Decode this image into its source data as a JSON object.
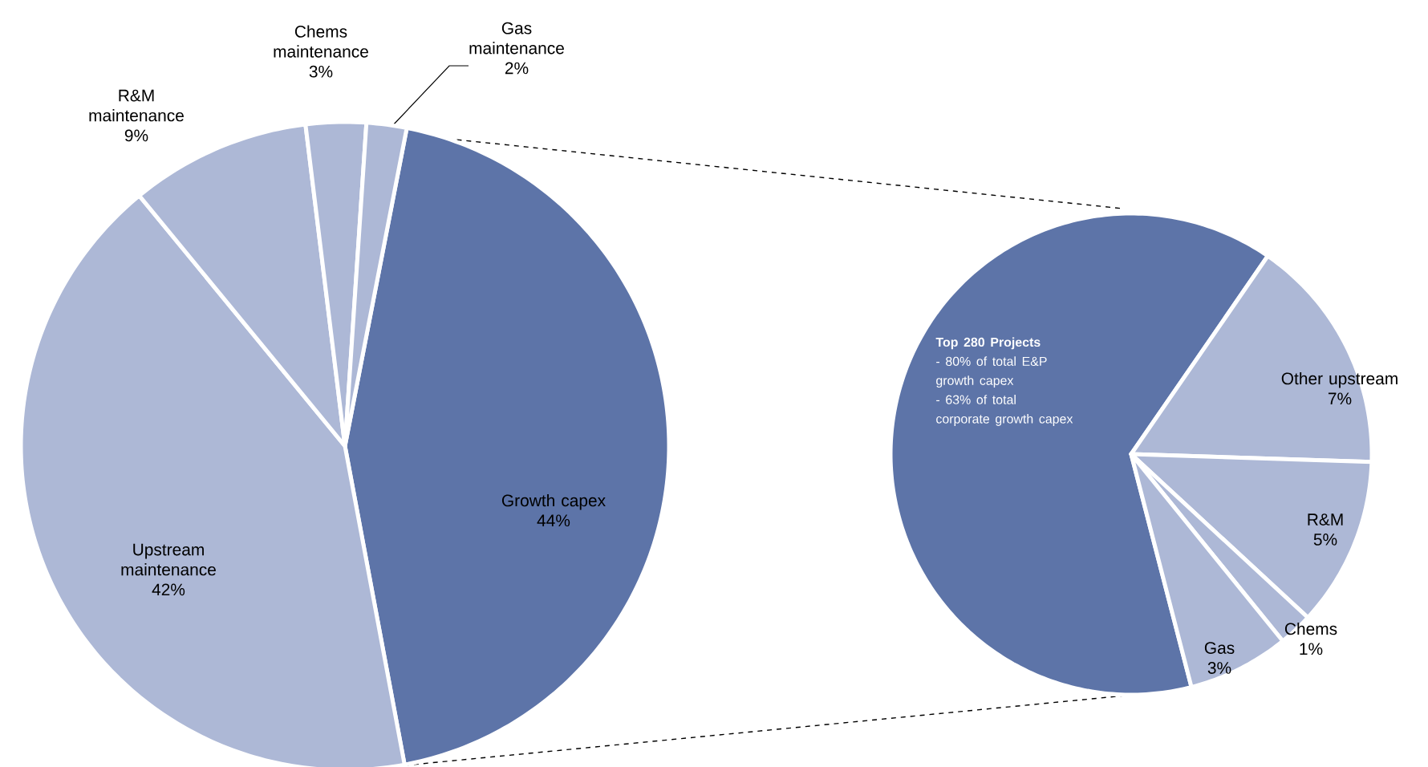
{
  "chart_data": [
    {
      "type": "pie",
      "categories": [
        "Growth capex",
        "Upstream maintenance",
        "R&M maintenance",
        "Chems maintenance",
        "Gas maintenance"
      ],
      "values": [
        44,
        42,
        9,
        3,
        2
      ],
      "colors": [
        "#5d74a8",
        "#adb8d6",
        "#adb8d6",
        "#adb8d6",
        "#adb8d6"
      ],
      "value_labels": [
        "44%",
        "42%",
        "9%",
        "3%",
        "2%"
      ]
    },
    {
      "type": "pie",
      "categories": [
        "Top 280 Projects",
        "Other upstream",
        "R&M",
        "Chems",
        "Gas"
      ],
      "values": [
        28,
        7,
        5,
        1,
        3
      ],
      "colors": [
        "#5d74a8",
        "#adb8d6",
        "#adb8d6",
        "#adb8d6",
        "#adb8d6"
      ],
      "value_labels": [
        null,
        "7%",
        "5%",
        "1%",
        "3%"
      ],
      "annotations": [
        "- 80% of total E&P growth capex",
        "- 63% of total corporate growth capex"
      ]
    }
  ]
}
